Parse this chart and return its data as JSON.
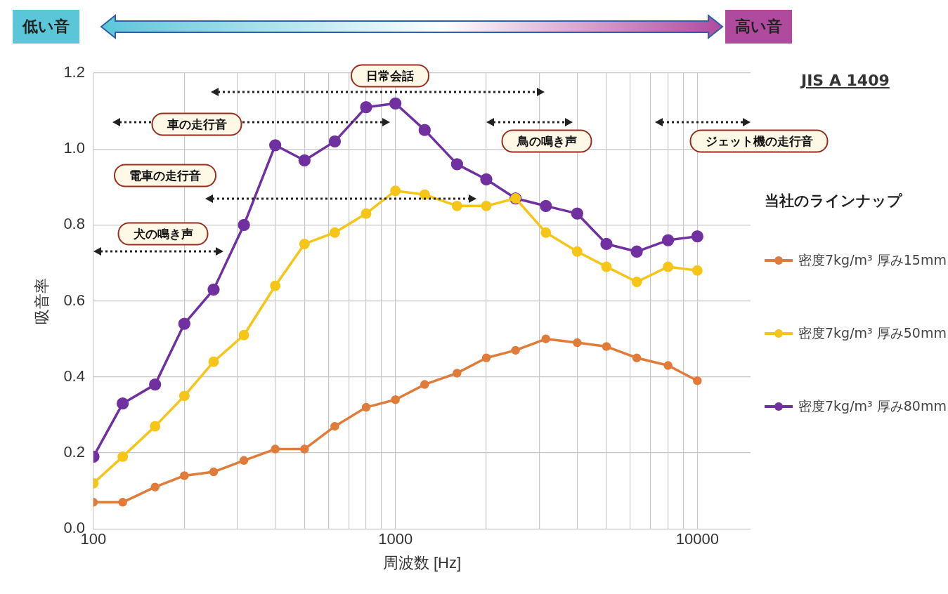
{
  "chart_data": {
    "type": "line",
    "xlabel": "周波数 [Hz]",
    "ylabel": "吸音率",
    "legend_title": "当社のラインナップ",
    "log": "x",
    "grid": true,
    "legend": "right",
    "marker": "circle",
    "line_style": "solid",
    "x": [
      100,
      125,
      160,
      200,
      250,
      315,
      400,
      500,
      630,
      800,
      1000,
      1250,
      1600,
      2000,
      2500,
      3150,
      4000,
      5000,
      6300,
      8000,
      10000
    ],
    "xlim": [
      100,
      15000
    ],
    "xticks": [
      100,
      {
        "value": 200,
        "label": null
      },
      {
        "value": 300,
        "label": null
      },
      {
        "value": 400,
        "label": null
      },
      {
        "value": 500,
        "label": null
      },
      {
        "value": 600,
        "label": null
      },
      {
        "value": 700,
        "label": null
      },
      {
        "value": 800,
        "label": null
      },
      {
        "value": 900,
        "label": null
      },
      1000,
      {
        "value": 2000,
        "label": null
      },
      {
        "value": 3000,
        "label": null
      },
      {
        "value": 4000,
        "label": null
      },
      {
        "value": 5000,
        "label": null
      },
      {
        "value": 6000,
        "label": null
      },
      {
        "value": 7000,
        "label": null
      },
      {
        "value": 8000,
        "label": null
      },
      {
        "value": 9000,
        "label": null
      },
      10000
    ],
    "ylim": [
      0,
      1.2
    ],
    "yticks": [
      {
        "value": 0,
        "label": "0.0"
      },
      {
        "value": 0.2,
        "label": "0.2"
      },
      {
        "value": 0.4,
        "label": "0.4"
      },
      {
        "value": 0.6,
        "label": "0.6"
      },
      {
        "value": 0.8,
        "label": "0.8"
      },
      {
        "value": 1,
        "label": "1.0"
      },
      {
        "value": 1.2,
        "label": "1.2"
      }
    ],
    "series": [
      {
        "name": "密度7kg/m³ 厚み15mm",
        "color": "#e07b39",
        "values": [
          0.07,
          0.07,
          0.11,
          0.14,
          0.15,
          0.18,
          0.21,
          0.21,
          0.27,
          0.32,
          0.34,
          0.38,
          0.41,
          0.45,
          0.47,
          0.5,
          0.49,
          0.48,
          0.45,
          0.43,
          0.39
        ]
      },
      {
        "name": "密度7kg/m³ 厚み50mm",
        "color": "#f5c518",
        "values": [
          0.12,
          0.19,
          0.27,
          0.35,
          0.44,
          0.51,
          0.64,
          0.75,
          0.78,
          0.83,
          0.89,
          0.88,
          0.85,
          0.85,
          0.87,
          0.78,
          0.73,
          0.69,
          0.65,
          0.69,
          0.68
        ]
      },
      {
        "name": "密度7kg/m³ 厚み80mm",
        "color": "#7030a0",
        "values": [
          0.19,
          0.33,
          0.38,
          0.54,
          0.63,
          0.8,
          1.01,
          0.97,
          1.02,
          1.11,
          1.12,
          1.05,
          0.96,
          0.92,
          0.87,
          0.85,
          0.83,
          0.75,
          0.73,
          0.76,
          0.77
        ]
      }
    ],
    "annotations": [
      "低い音",
      "高い音",
      "JIS A 1409",
      "日常会話",
      "車の走行音",
      "鳥の鳴き声",
      "ジェット機の走行音",
      "電車の走行音",
      "犬の鳴き声"
    ]
  }
}
